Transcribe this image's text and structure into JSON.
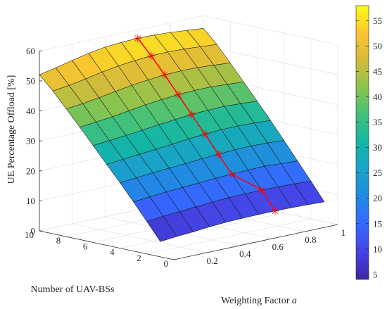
{
  "chart_data": {
    "type": "surface",
    "zlabel": "UE Percentage Offload [%]",
    "ylabel": "Number of UAV-BSs",
    "xlabel_text": "Weighting Factor ",
    "xlabel_symbol": "a",
    "z_ticks": [
      "0",
      "10",
      "20",
      "30",
      "40",
      "50",
      "60"
    ],
    "n_ticks": [
      "0",
      "2",
      "4",
      "6",
      "8",
      "10"
    ],
    "a_ticks": [
      "0.2",
      "0.4",
      "0.6",
      "0.8",
      "1"
    ],
    "colorbar_ticks": [
      "5",
      "10",
      "15",
      "20",
      "25",
      "30",
      "35",
      "40",
      "45",
      "50",
      "55"
    ],
    "colorbar_range": [
      4,
      58
    ],
    "zlim": [
      0,
      60
    ],
    "weighting_factor": [
      0,
      0.1,
      0.2,
      0.3,
      0.4,
      0.5,
      0.6,
      0.7,
      0.8,
      0.9,
      1.0
    ],
    "num_uav_bs": [
      1,
      2,
      3,
      4,
      5,
      6,
      7,
      8,
      9,
      10
    ],
    "surface_z": [
      [
        5.1,
        5.6,
        6.0,
        6.5,
        6.8,
        7.0,
        7.1,
        7.1,
        7.0,
        6.8,
        6.6
      ],
      [
        10.8,
        11.4,
        11.8,
        12.2,
        12.6,
        12.9,
        13.0,
        13.1,
        13.0,
        12.8,
        12.6
      ],
      [
        16.4,
        16.9,
        17.4,
        17.7,
        18.0,
        18.4,
        18.6,
        18.8,
        18.9,
        18.6,
        18.3
      ],
      [
        21.8,
        22.3,
        22.8,
        23.2,
        23.5,
        24.0,
        24.3,
        24.6,
        24.7,
        24.5,
        24.2
      ],
      [
        27.0,
        27.5,
        28.0,
        28.5,
        29.0,
        29.6,
        30.0,
        30.3,
        30.4,
        30.2,
        29.9
      ],
      [
        32.3,
        32.8,
        33.3,
        33.9,
        34.6,
        35.1,
        35.6,
        35.9,
        36.0,
        35.7,
        35.4
      ],
      [
        37.5,
        38.0,
        38.6,
        39.4,
        40.2,
        40.8,
        41.3,
        41.5,
        41.5,
        41.2,
        40.8
      ],
      [
        42.6,
        43.2,
        44.0,
        44.9,
        45.8,
        46.4,
        46.9,
        47.1,
        47.0,
        46.6,
        46.2
      ],
      [
        47.6,
        48.3,
        49.3,
        50.4,
        51.3,
        51.9,
        52.3,
        52.4,
        52.2,
        51.8,
        51.4
      ],
      [
        52.1,
        53.2,
        54.5,
        55.7,
        56.6,
        57.0,
        57.2,
        57.1,
        56.8,
        56.3,
        55.8
      ]
    ],
    "optimal_path": [
      {
        "uav_bs": 1,
        "a": 0.7,
        "offload": 7.1
      },
      {
        "uav_bs": 2,
        "a": 0.7,
        "offload": 13.1
      },
      {
        "uav_bs": 3,
        "a": 0.6,
        "offload": 18.6
      },
      {
        "uav_bs": 4,
        "a": 0.6,
        "offload": 24.3
      },
      {
        "uav_bs": 5,
        "a": 0.6,
        "offload": 30.0
      },
      {
        "uav_bs": 6,
        "a": 0.6,
        "offload": 35.6
      },
      {
        "uav_bs": 7,
        "a": 0.6,
        "offload": 41.3
      },
      {
        "uav_bs": 8,
        "a": 0.6,
        "offload": 46.9
      },
      {
        "uav_bs": 9,
        "a": 0.6,
        "offload": 52.3
      },
      {
        "uav_bs": 10,
        "a": 0.6,
        "offload": 57.2
      }
    ],
    "colormap": "parula",
    "path_color": "#ff0000",
    "grid": true,
    "colorbar_position": "right"
  }
}
